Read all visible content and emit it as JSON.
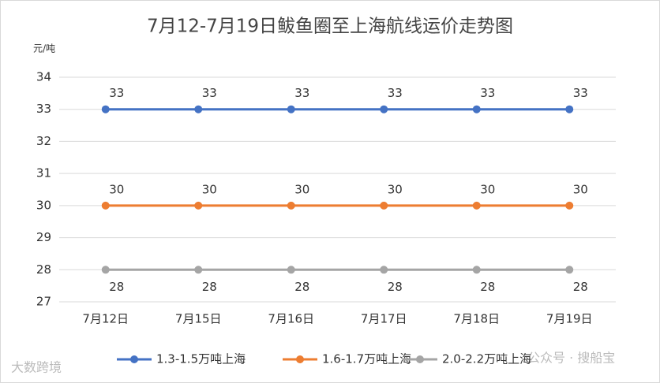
{
  "chart_data": {
    "type": "line",
    "title": "7月12-7月19日鲅鱼圈至上海航线运价走势图",
    "y_label": "元/吨",
    "categories": [
      "7月12日",
      "7月15日",
      "7月16日",
      "7月17日",
      "7月18日",
      "7月19日"
    ],
    "series": [
      {
        "name": "1.3-1.5万吨上海",
        "color": "#4472c4",
        "values": [
          33,
          33,
          33,
          33,
          33,
          33
        ]
      },
      {
        "name": "1.6-1.7万吨上海",
        "color": "#ed7d31",
        "values": [
          30,
          30,
          30,
          30,
          30,
          30
        ]
      },
      {
        "name": "2.0-2.2万吨上海",
        "color": "#a5a5a5",
        "values": [
          28,
          28,
          28,
          28,
          28,
          28
        ]
      }
    ],
    "ylim": [
      27,
      34
    ],
    "yticks": [
      27,
      28,
      29,
      30,
      31,
      32,
      33,
      34
    ],
    "grid": true,
    "legend": "bottom",
    "watermarks": [
      "大数跨境",
      "公众号 · 搜船宝"
    ]
  }
}
